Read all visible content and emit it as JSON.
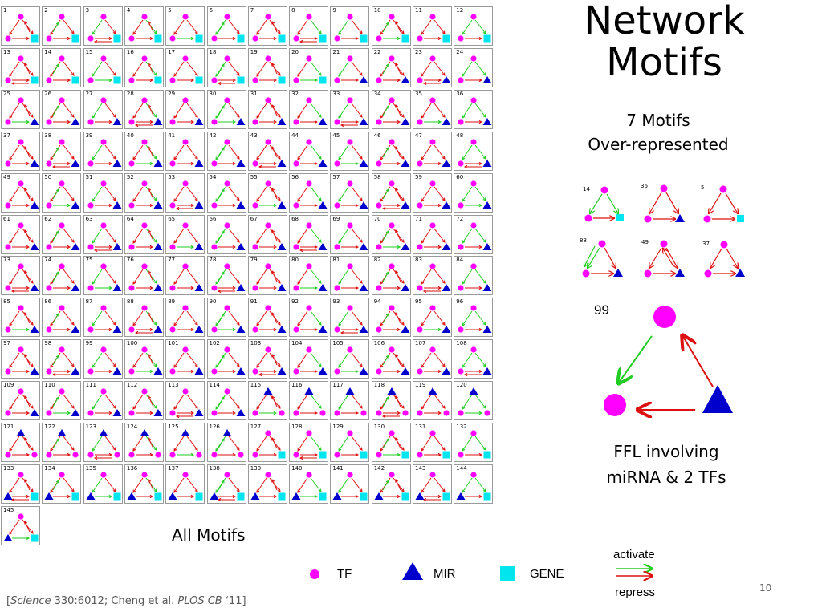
{
  "slide": {
    "title_line1": "Network",
    "title_line2": "Motifs",
    "subtitle_line1": "7 Motifs",
    "subtitle_line2": "Over-represented",
    "all_motifs_label": "All Motifs",
    "ffl_caption_line1": "FFL involving",
    "ffl_caption_line2": "miRNA & 2 TFs",
    "page_number": "10",
    "citation": {
      "open": "[",
      "journal1": "Science",
      "ref1": " 330:6012; Cheng et al. ",
      "journal2": "PLOS CB",
      "ref2": " ‘11]"
    }
  },
  "motif_grid": {
    "numbers": [
      "1",
      "2",
      "3",
      "4",
      "5",
      "6",
      "7",
      "8",
      "9",
      "10",
      "11",
      "12",
      "13",
      "14",
      "15",
      "16",
      "17",
      "18",
      "19",
      "20",
      "21",
      "22",
      "23",
      "24",
      "25",
      "26",
      "27",
      "28",
      "29",
      "30",
      "31",
      "32",
      "33",
      "34",
      "35",
      "36",
      "37",
      "38",
      "39",
      "40",
      "41",
      "42",
      "43",
      "44",
      "45",
      "46",
      "47",
      "48",
      "49",
      "50",
      "51",
      "52",
      "53",
      "54",
      "55",
      "56",
      "57",
      "58",
      "59",
      "60",
      "61",
      "62",
      "63",
      "64",
      "65",
      "66",
      "67",
      "68",
      "69",
      "70",
      "71",
      "72",
      "73",
      "74",
      "75",
      "76",
      "77",
      "78",
      "79",
      "80",
      "81",
      "82",
      "83",
      "84",
      "85",
      "86",
      "87",
      "88",
      "89",
      "90",
      "91",
      "92",
      "93",
      "94",
      "95",
      "96",
      "97",
      "98",
      "99",
      "100",
      "101",
      "102",
      "103",
      "104",
      "105",
      "106",
      "107",
      "108",
      "109",
      "110",
      "111",
      "112",
      "113",
      "114",
      "115",
      "116",
      "117",
      "118",
      "119",
      "120",
      "121",
      "122",
      "123",
      "124",
      "125",
      "126",
      "127",
      "128",
      "129",
      "130",
      "131",
      "132",
      "133",
      "134",
      "135",
      "136",
      "137",
      "138",
      "139",
      "140",
      "141",
      "142",
      "143",
      "144",
      "145"
    ],
    "columns": 12
  },
  "selected_motifs": {
    "numbers": [
      "14",
      "36",
      "5",
      "88",
      "49",
      "37"
    ]
  },
  "highlight_motif": {
    "number": "99"
  },
  "legend": {
    "tf_label": "TF",
    "mir_label": "MIR",
    "gene_label": "GENE",
    "activate_label": "activate",
    "repress_label": "repress"
  },
  "colors": {
    "tf": "#ff00ff",
    "mir": "#0000cc",
    "gene": "#00e5ee",
    "activate": "#22cc22",
    "repress": "#dd1111"
  }
}
